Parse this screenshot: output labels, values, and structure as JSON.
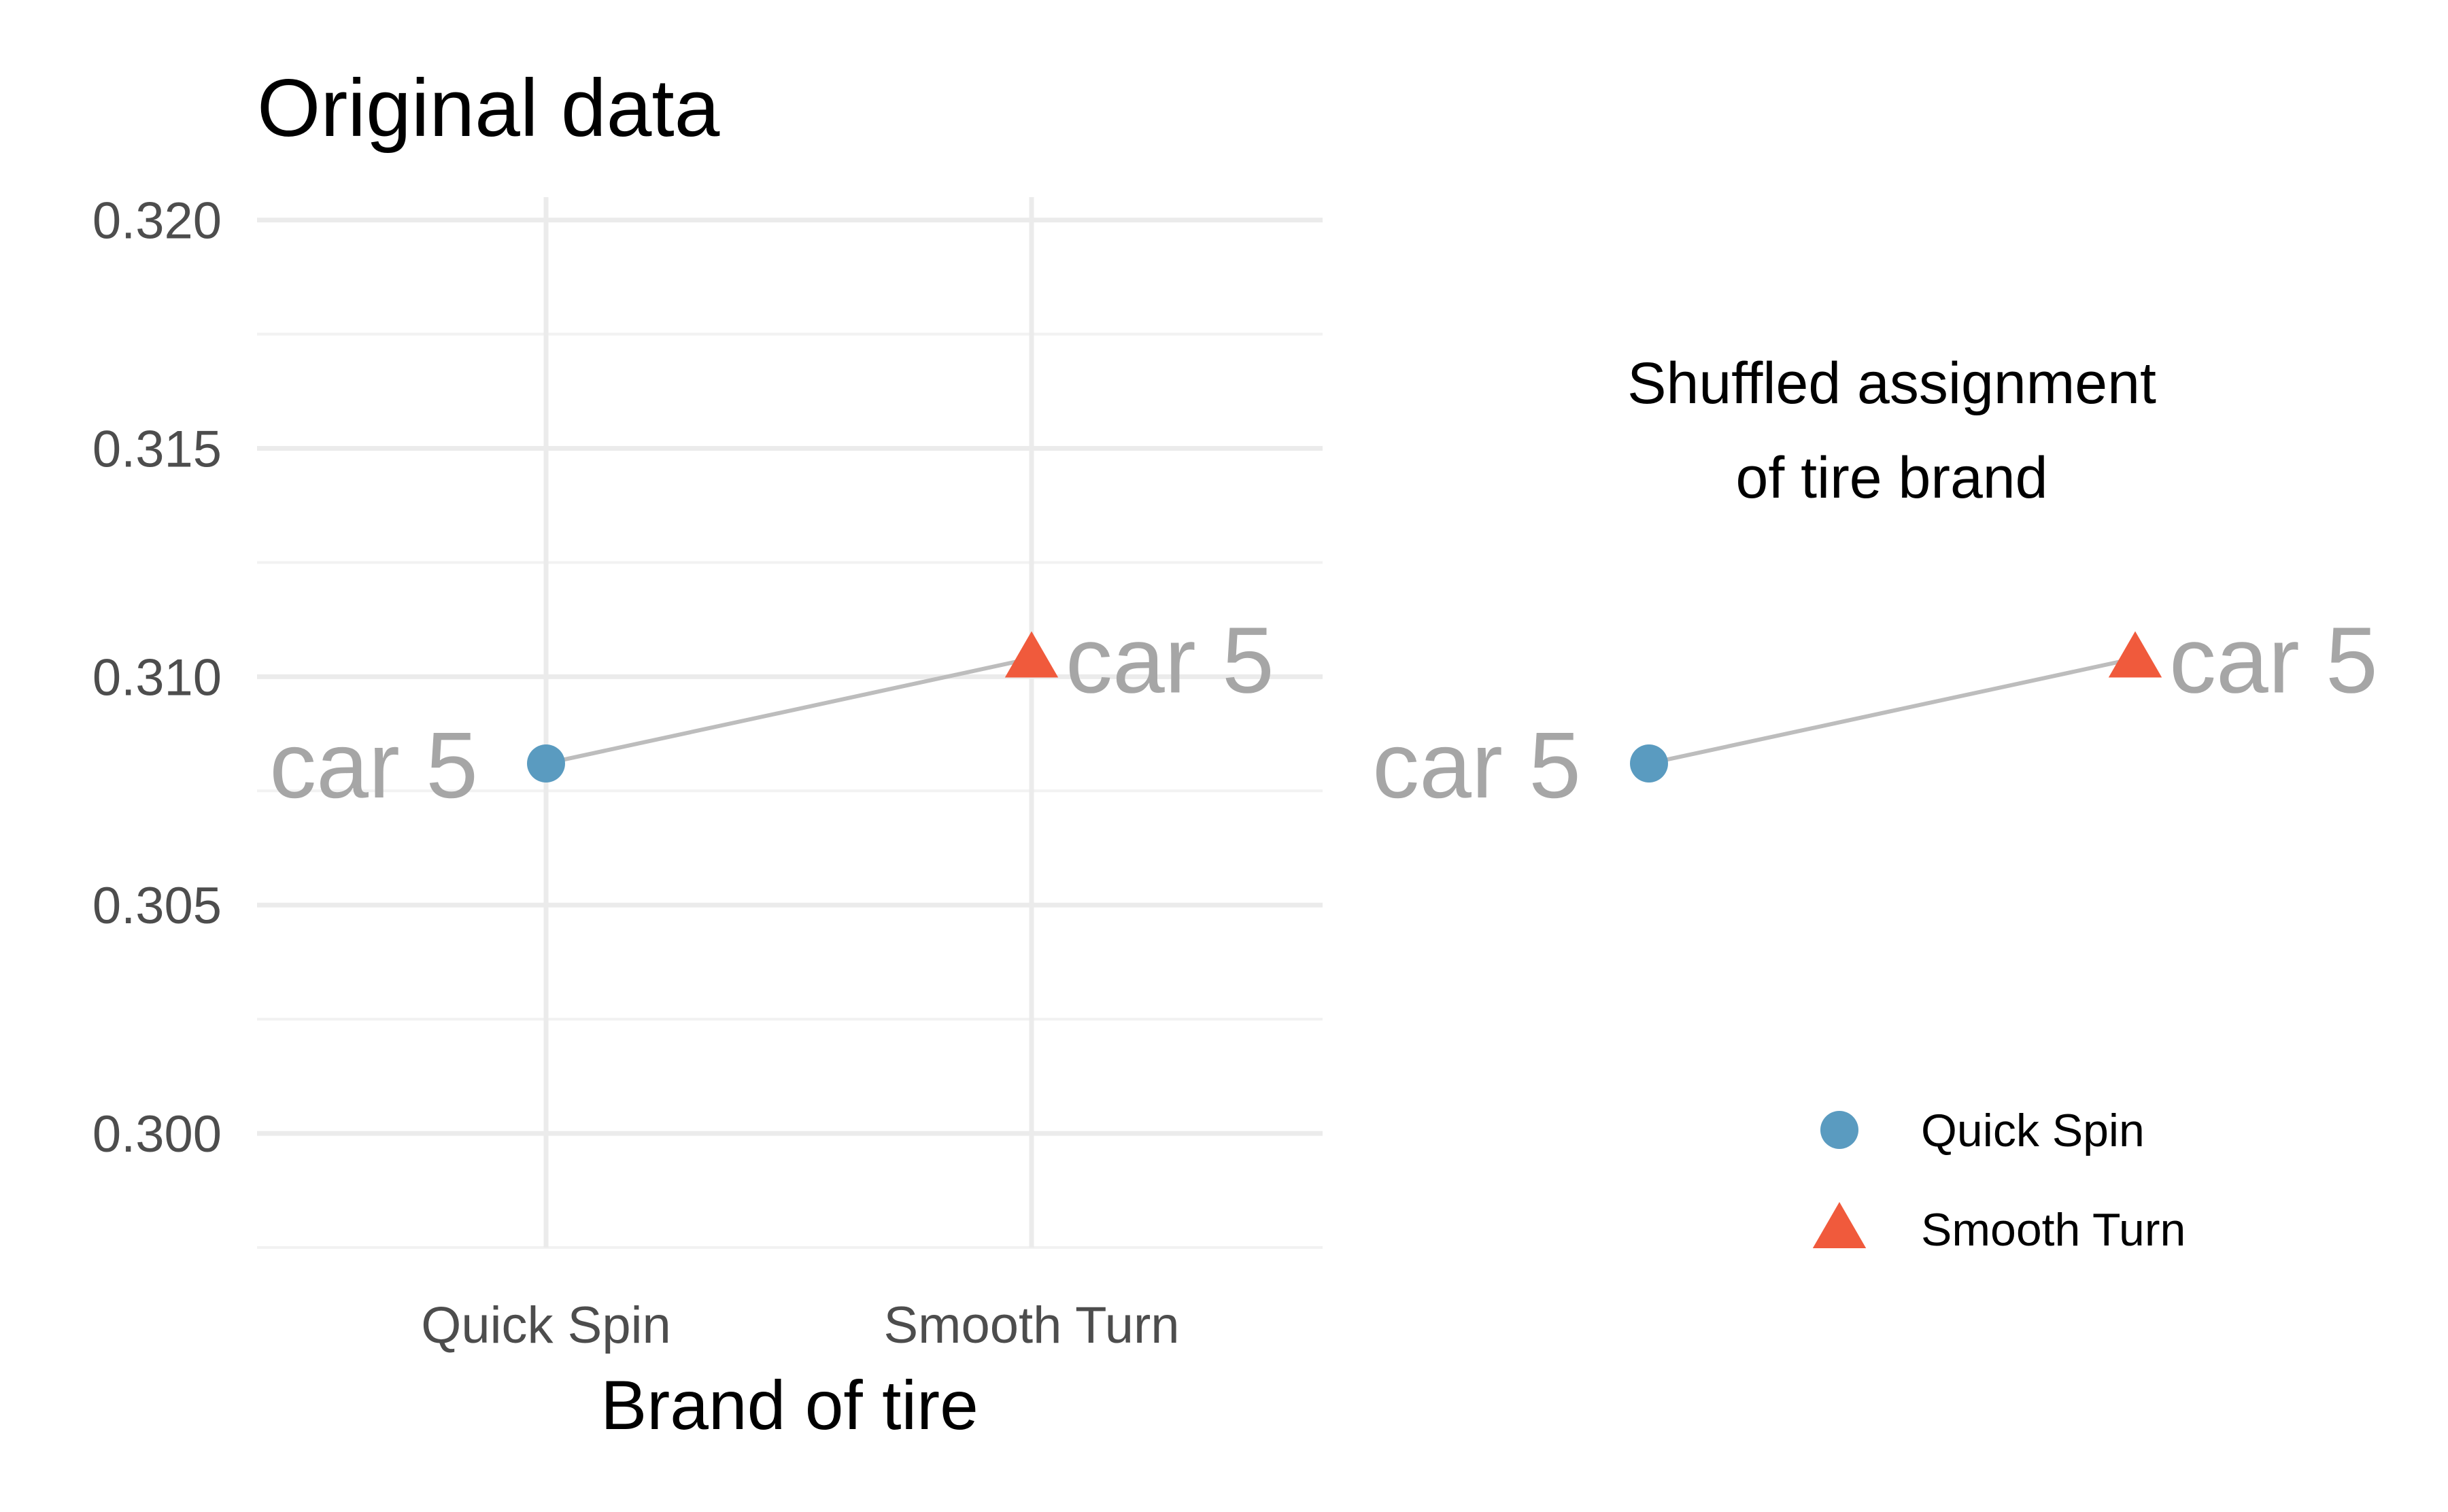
{
  "chart_data": [
    {
      "type": "scatter",
      "title": "Original data",
      "xlabel": "Brand of tire",
      "ylabel": "",
      "categories": [
        "Quick Spin",
        "Smooth Turn"
      ],
      "ylim": [
        0.2975,
        0.3205
      ],
      "yticks": [
        "0.300",
        "0.305",
        "0.310",
        "0.315",
        "0.320"
      ],
      "ytick_values": [
        0.3,
        0.305,
        0.31,
        0.315,
        0.32
      ],
      "grid": true,
      "series": [
        {
          "name": "Quick Spin",
          "x": "Quick Spin",
          "y": 0.3081,
          "shape": "circle"
        },
        {
          "name": "Smooth Turn",
          "x": "Smooth Turn",
          "y": 0.3104,
          "shape": "triangle"
        }
      ],
      "connector": {
        "from": "Quick Spin",
        "to": "Smooth Turn"
      },
      "point_labels": [
        "car 5",
        "car 5"
      ]
    },
    {
      "type": "scatter",
      "title": "Shuffled assignment\nof tire brand",
      "title_lines": [
        "Shuffled assignment",
        "of tire brand"
      ],
      "grid": false,
      "legend_position": "bottom-right",
      "series": [
        {
          "name": "Quick Spin",
          "x": "Quick Spin",
          "y": 0.3081,
          "shape": "circle"
        },
        {
          "name": "Smooth Turn",
          "x": "Smooth Turn",
          "y": 0.3104,
          "shape": "triangle"
        }
      ],
      "point_labels": [
        "car 5",
        "car 5"
      ]
    }
  ],
  "legend": [
    {
      "label": "Quick Spin",
      "shape": "circle"
    },
    {
      "label": "Smooth Turn",
      "shape": "triangle"
    }
  ],
  "colors": {
    "quick_spin": "#5a9bc0",
    "smooth_turn": "#f05a3c",
    "connector": "#bdbdbd",
    "grid_major": "#ebebeb",
    "grid_minor": "#f2f2f2",
    "car_label": "#a6a6a6"
  }
}
